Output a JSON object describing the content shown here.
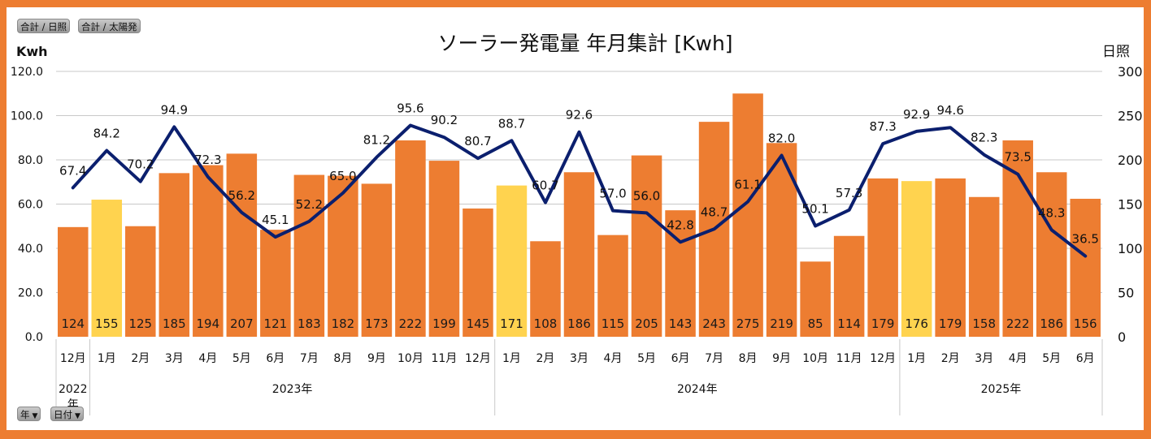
{
  "field_buttons": {
    "top": [
      {
        "label": "合計 / 日照"
      },
      {
        "label": "合計 / 太陽発"
      }
    ],
    "bottom": [
      {
        "label": "年",
        "icon": "dropdown-arrow-icon"
      },
      {
        "label": "日付",
        "icon": "dropdown-arrow-icon"
      }
    ]
  },
  "colors": {
    "frame": "#ED7D31",
    "bar": "#ED7D31",
    "bar_highlight": "#FFD34F",
    "line": "#0B1F6E",
    "grid": "#C8C8C8",
    "text": "#111111"
  },
  "chart_data": {
    "type": "bar+line",
    "title": "ソーラー発電量 年月集計 [Kwh]",
    "ylabel_left": "Kwh",
    "ylabel_right": "日照",
    "ylim_left": [
      0,
      120
    ],
    "ylim_right": [
      0,
      300
    ],
    "yticks_left": [
      "0.0",
      "20.0",
      "40.0",
      "60.0",
      "80.0",
      "100.0",
      "120.0"
    ],
    "yticks_right": [
      "0",
      "50",
      "100",
      "150",
      "200",
      "250",
      "300"
    ],
    "grid": true,
    "categories": [
      "12月",
      "1月",
      "2月",
      "3月",
      "4月",
      "5月",
      "6月",
      "7月",
      "8月",
      "9月",
      "10月",
      "11月",
      "12月",
      "1月",
      "2月",
      "3月",
      "4月",
      "5月",
      "6月",
      "7月",
      "8月",
      "9月",
      "10月",
      "11月",
      "12月",
      "1月",
      "2月",
      "3月",
      "4月",
      "5月",
      "6月"
    ],
    "year_groups": [
      {
        "label": "2022年",
        "count": 1
      },
      {
        "label": "2023年",
        "count": 12
      },
      {
        "label": "2024年",
        "count": 12
      },
      {
        "label": "2025年",
        "count": 6
      }
    ],
    "series": [
      {
        "name": "合計 / 日照",
        "type": "bar",
        "axis": "right",
        "values": [
          124,
          155,
          125,
          185,
          194,
          207,
          121,
          183,
          182,
          173,
          222,
          199,
          145,
          171,
          108,
          186,
          115,
          205,
          143,
          243,
          275,
          219,
          85,
          114,
          179,
          176,
          179,
          158,
          222,
          186,
          156
        ],
        "highlight": [
          false,
          true,
          false,
          false,
          false,
          false,
          false,
          false,
          false,
          false,
          false,
          false,
          false,
          true,
          false,
          false,
          false,
          false,
          false,
          false,
          false,
          false,
          false,
          false,
          false,
          true,
          false,
          false,
          false,
          false,
          false
        ]
      },
      {
        "name": "合計 / 太陽発",
        "type": "line",
        "axis": "left",
        "values": [
          67.4,
          84.2,
          70.2,
          94.9,
          72.3,
          56.2,
          45.1,
          52.2,
          65.0,
          81.2,
          95.6,
          90.2,
          80.7,
          88.7,
          60.7,
          92.6,
          57.0,
          56.0,
          42.8,
          48.7,
          61.1,
          82.0,
          50.1,
          57.3,
          87.3,
          92.9,
          94.6,
          82.3,
          73.5,
          48.3,
          36.5
        ]
      }
    ]
  }
}
